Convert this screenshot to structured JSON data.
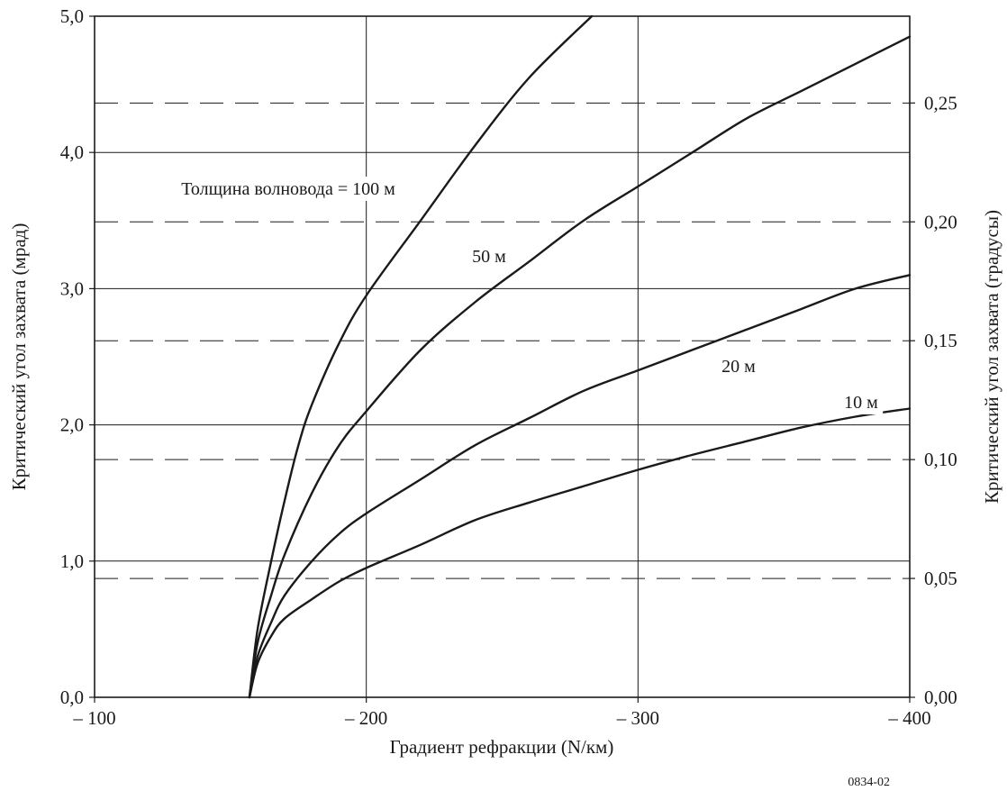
{
  "chart_data": {
    "type": "line",
    "title": "",
    "xlabel": "Градиент рефракции (N/км)",
    "ylabel": "Критический угол захвата (мрад)",
    "y2label": "Критический угол захвата (градусы)",
    "xlim": [
      -100,
      -400
    ],
    "ylim": [
      0,
      5
    ],
    "y2lim": [
      0,
      0.2865
    ],
    "x_ticks": [
      -100,
      -200,
      -300,
      -400
    ],
    "x_tick_labels": [
      "– 100",
      "– 200",
      "– 300",
      "– 400"
    ],
    "y_ticks": [
      0,
      1,
      2,
      3,
      4,
      5
    ],
    "y_tick_labels": [
      "0,0",
      "1,0",
      "2,0",
      "3,0",
      "4,0",
      "5,0"
    ],
    "y2_ticks": [
      0,
      0.05,
      0.1,
      0.15,
      0.2,
      0.25
    ],
    "y2_tick_labels": [
      "0,00",
      "0,05",
      "0,10",
      "0,15",
      "0,20",
      "0,25"
    ],
    "grid": true,
    "y2_grid_style": "dashed",
    "series": [
      {
        "name": "Толщина волновода = 100 м",
        "x": [
          -157,
          -160,
          -165,
          -170,
          -175,
          -180,
          -190,
          -200,
          -220,
          -240,
          -260,
          -283
        ],
        "y": [
          0.0,
          0.5,
          1.0,
          1.45,
          1.85,
          2.15,
          2.6,
          2.95,
          3.5,
          4.05,
          4.55,
          5.0
        ]
      },
      {
        "name": "50 м",
        "x": [
          -157,
          -160,
          -165,
          -170,
          -180,
          -190,
          -200,
          -220,
          -240,
          -260,
          -280,
          -300,
          -320,
          -340,
          -360,
          -380,
          -400
        ],
        "y": [
          0.0,
          0.4,
          0.75,
          1.05,
          1.5,
          1.85,
          2.1,
          2.55,
          2.9,
          3.2,
          3.5,
          3.75,
          4.0,
          4.25,
          4.45,
          4.65,
          4.85
        ]
      },
      {
        "name": "20 м",
        "x": [
          -157,
          -160,
          -165,
          -170,
          -180,
          -190,
          -200,
          -220,
          -240,
          -260,
          -280,
          -300,
          -320,
          -340,
          -360,
          -380,
          -400
        ],
        "y": [
          0.0,
          0.3,
          0.55,
          0.75,
          1.0,
          1.2,
          1.35,
          1.6,
          1.85,
          2.05,
          2.25,
          2.4,
          2.55,
          2.7,
          2.85,
          3.0,
          3.1
        ]
      },
      {
        "name": "10 м",
        "x": [
          -157,
          -160,
          -165,
          -170,
          -180,
          -190,
          -200,
          -220,
          -240,
          -260,
          -280,
          -300,
          -320,
          -340,
          -360,
          -380,
          -400
        ],
        "y": [
          0.0,
          0.25,
          0.45,
          0.58,
          0.72,
          0.85,
          0.95,
          1.12,
          1.3,
          1.43,
          1.55,
          1.67,
          1.78,
          1.88,
          1.98,
          2.06,
          2.12
        ]
      }
    ]
  },
  "figure_id": "0834-02"
}
